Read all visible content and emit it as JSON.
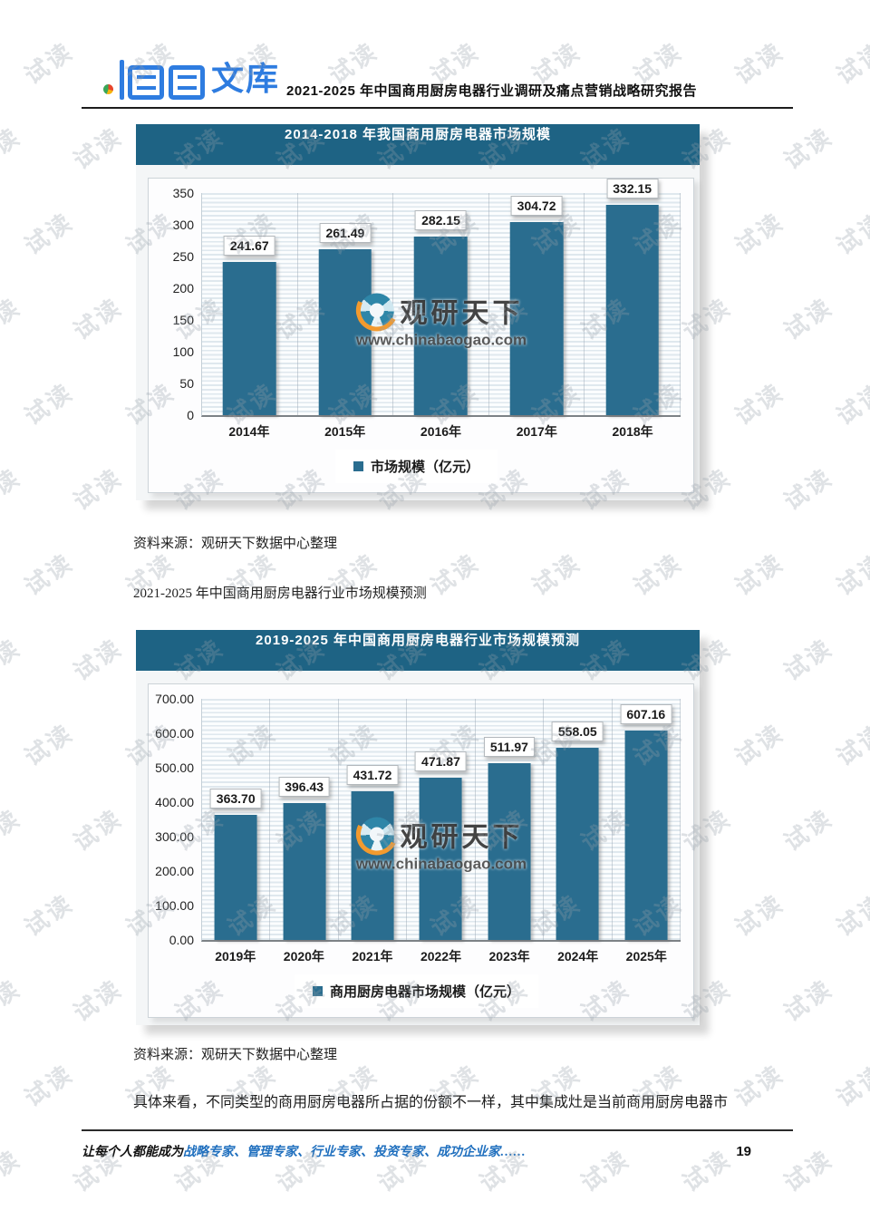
{
  "watermark": {
    "text": "试读"
  },
  "header": {
    "logo_text": "文库",
    "title": "2021-2025 年中国商用厨房电器行业调研及痛点营销战略研究报告"
  },
  "brand_watermark": {
    "name": "观研天下",
    "url": "www.chinabaogao.com"
  },
  "source_note_1": "资料来源：观研天下数据中心整理",
  "section_caption": "2021-2025 年中国商用厨房电器行业市场规模预测",
  "source_note_2": "资料来源：观研天下数据中心整理",
  "paragraph": "具体来看，不同类型的商用厨房电器所占据的份额不一样，其中集成灶是当前商用厨房电器市",
  "footer": {
    "prefix": "让每个人都能成为",
    "highlight": "战略专家、管理专家、行业专家、投资专家、成功企业家……",
    "page_number": "19"
  },
  "chart_data": [
    {
      "type": "bar",
      "title": "2014-2018 年我国商用厨房电器市场规模",
      "categories": [
        "2014年",
        "2015年",
        "2016年",
        "2017年",
        "2018年"
      ],
      "values": [
        241.67,
        261.49,
        282.15,
        304.72,
        332.15
      ],
      "labels": [
        "241.67",
        "261.49",
        "282.15",
        "304.72",
        "332.15"
      ],
      "legend": "市场规模（亿元）",
      "xlabel": "",
      "ylabel": "",
      "ylim": [
        0,
        350
      ],
      "yticks": [
        "350",
        "300",
        "250",
        "200",
        "150",
        "100",
        "50",
        "0"
      ],
      "grid": "horizontal-stripes",
      "legend_position": "bottom",
      "bar_color": "#2a6d8f",
      "banner_color": "#1e6384"
    },
    {
      "type": "bar",
      "title": "2019-2025 年中国商用厨房电器行业市场规模预测",
      "categories": [
        "2019年",
        "2020年",
        "2021年",
        "2022年",
        "2023年",
        "2024年",
        "2025年"
      ],
      "values": [
        363.7,
        396.43,
        431.72,
        471.87,
        511.97,
        558.05,
        607.16
      ],
      "labels": [
        "363.70",
        "396.43",
        "431.72",
        "471.87",
        "511.97",
        "558.05",
        "607.16"
      ],
      "legend": "商用厨房电器市场规模（亿元）",
      "xlabel": "",
      "ylabel": "",
      "ylim": [
        0,
        700
      ],
      "yticks": [
        "700.00",
        "600.00",
        "500.00",
        "400.00",
        "300.00",
        "200.00",
        "100.00",
        "0.00"
      ],
      "grid": "horizontal-stripes",
      "legend_position": "bottom",
      "bar_color": "#2a6d8f",
      "banner_color": "#1e6384"
    }
  ]
}
